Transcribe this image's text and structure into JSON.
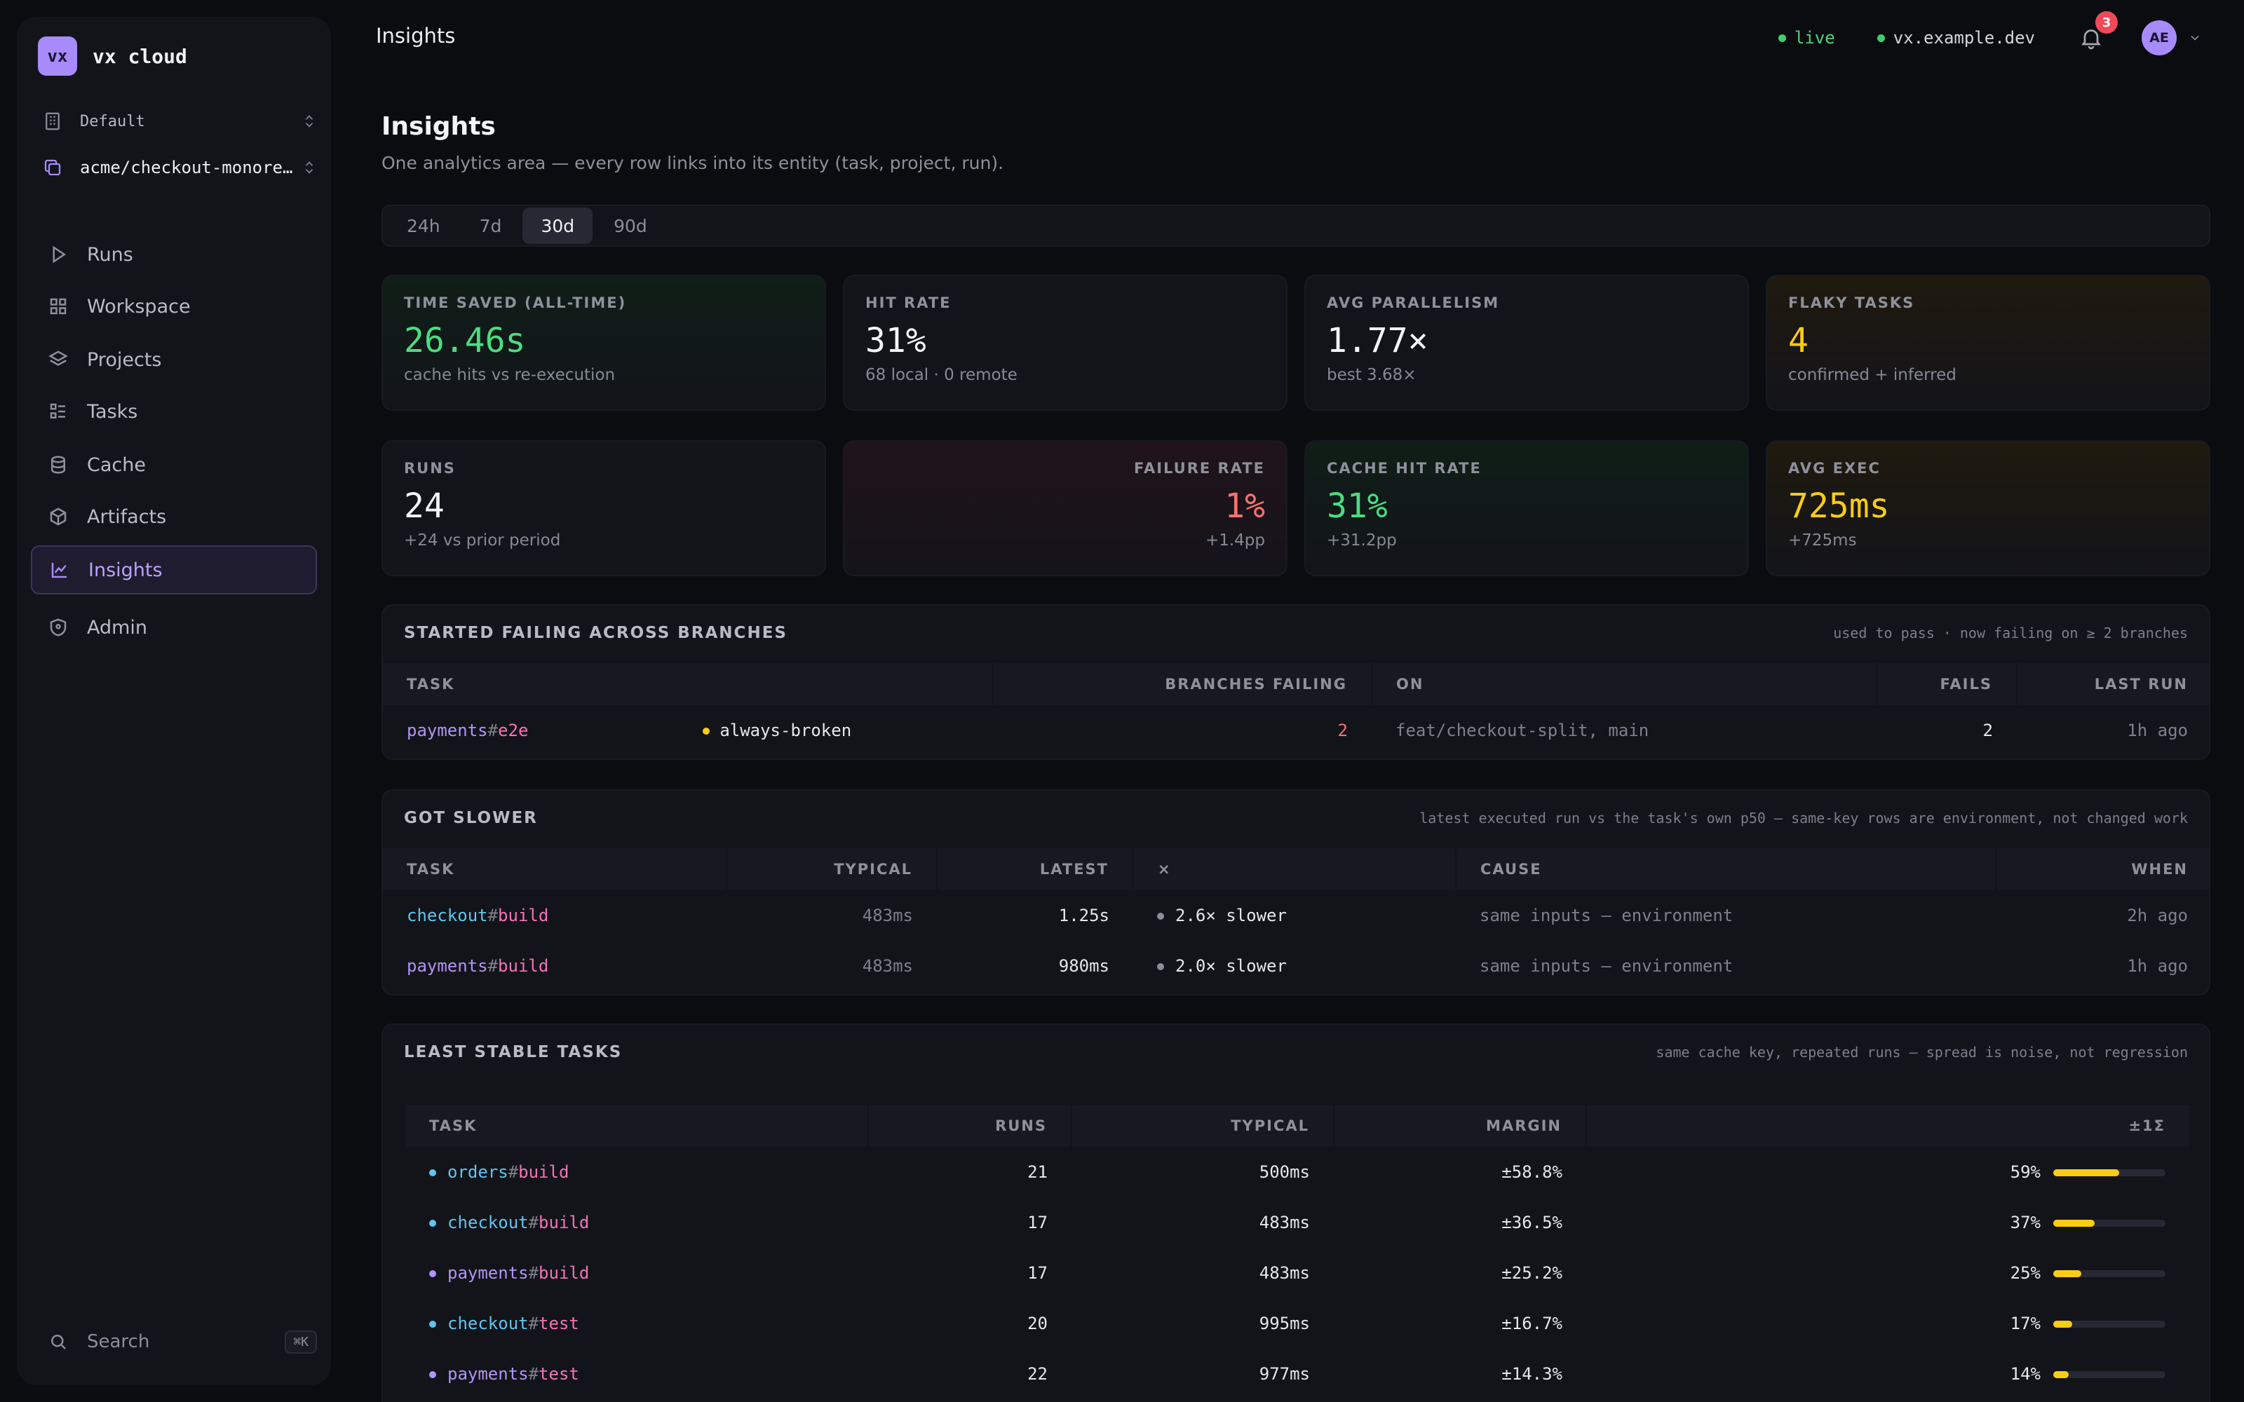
{
  "sidebar": {
    "logo": "vx",
    "brand": "vx cloud",
    "workspace": "Default",
    "project": "acme/checkout-monorepo",
    "items": [
      {
        "label": "Runs",
        "icon": "play-icon"
      },
      {
        "label": "Workspace",
        "icon": "grid-icon"
      },
      {
        "label": "Projects",
        "icon": "layers-icon"
      },
      {
        "label": "Tasks",
        "icon": "list-icon"
      },
      {
        "label": "Cache",
        "icon": "database-icon"
      },
      {
        "label": "Artifacts",
        "icon": "box-icon"
      },
      {
        "label": "Insights",
        "icon": "chart-icon",
        "active": true
      },
      {
        "label": "Admin",
        "icon": "shield-icon"
      }
    ],
    "search": "Search",
    "search_kbd": "⌘K"
  },
  "topbar": {
    "title": "Insights",
    "status": "live",
    "host": "vx.example.dev",
    "notifications": "3",
    "avatar": "AE"
  },
  "page": {
    "title": "Insights",
    "subtitle": "One analytics area — every row links into its entity (task, project, run).",
    "ranges": [
      "24h",
      "7d",
      "30d",
      "90d"
    ],
    "active_range": "30d"
  },
  "kpis": [
    {
      "label": "TIME SAVED (ALL-TIME)",
      "value": "26.46s",
      "sub": "cache hits vs re-execution",
      "tone": "green"
    },
    {
      "label": "HIT RATE",
      "value": "31%",
      "sub": "68 local · 0 remote",
      "tone": "neutral"
    },
    {
      "label": "AVG PARALLELISM",
      "value": "1.77×",
      "sub": "best 3.68×",
      "tone": "neutral"
    },
    {
      "label": "FLAKY TASKS",
      "value": "4",
      "sub": "confirmed + inferred",
      "tone": "yellow"
    },
    {
      "label": "RUNS",
      "value": "24",
      "sub": "+24 vs prior period",
      "tone": "neutral"
    },
    {
      "label": "FAILURE RATE",
      "value": "1%",
      "sub": "+1.4pp",
      "tone": "red"
    },
    {
      "label": "CACHE HIT RATE",
      "value": "31%",
      "sub": "+31.2pp",
      "tone": "green"
    },
    {
      "label": "AVG EXEC",
      "value": "725ms",
      "sub": "+725ms",
      "tone": "yellow"
    }
  ],
  "failing": {
    "title": "STARTED FAILING ACROSS BRANCHES",
    "note": "used to pass · now failing on ≥ 2 branches",
    "headers": [
      "TASK",
      "BRANCHES FAILING",
      "ON",
      "FAILS",
      "LAST RUN"
    ],
    "rows": [
      {
        "project": "payments",
        "target": "e2e",
        "tag": "always-broken",
        "branches": "2",
        "on": "feat/checkout-split, main",
        "fails": "2",
        "last": "1h ago"
      }
    ]
  },
  "slower": {
    "title": "GOT SLOWER",
    "note": "latest executed run vs the task's own p50 — same-key rows are environment, not changed work",
    "headers": [
      "TASK",
      "TYPICAL",
      "LATEST",
      "×",
      "CAUSE",
      "WHEN"
    ],
    "rows": [
      {
        "project": "checkout",
        "target": "build",
        "typical": "483ms",
        "latest": "1.25s",
        "factor": "2.6× slower",
        "cause": "same inputs — environment",
        "when": "2h ago"
      },
      {
        "project": "payments",
        "target": "build",
        "typical": "483ms",
        "latest": "980ms",
        "factor": "2.0× slower",
        "cause": "same inputs — environment",
        "when": "1h ago"
      }
    ]
  },
  "stable": {
    "title": "LEAST STABLE TASKS",
    "note": "same cache key, repeated runs — spread is noise, not regression",
    "headers": [
      "TASK",
      "RUNS",
      "TYPICAL",
      "MARGIN",
      "±1Σ"
    ],
    "rows": [
      {
        "project": "orders",
        "target": "build",
        "runs": "21",
        "typical": "500ms",
        "margin": "±58.8%",
        "pct": "59%",
        "fill": 0.59
      },
      {
        "project": "checkout",
        "target": "build",
        "runs": "17",
        "typical": "483ms",
        "margin": "±36.5%",
        "pct": "37%",
        "fill": 0.37
      },
      {
        "project": "payments",
        "target": "build",
        "runs": "17",
        "typical": "483ms",
        "margin": "±25.2%",
        "pct": "25%",
        "fill": 0.25
      },
      {
        "project": "checkout",
        "target": "test",
        "runs": "20",
        "typical": "995ms",
        "margin": "±16.7%",
        "pct": "17%",
        "fill": 0.17
      },
      {
        "project": "payments",
        "target": "test",
        "runs": "22",
        "typical": "977ms",
        "margin": "±14.3%",
        "pct": "14%",
        "fill": 0.14
      }
    ]
  },
  "colors": {
    "accent": "#a78bfa",
    "green": "#4ade80",
    "red": "#f87171",
    "yellow": "#facc15",
    "checkout": "#60c4ee",
    "payments": "#b094f7",
    "orders": "#60c4ee",
    "target": "#f472b6"
  }
}
